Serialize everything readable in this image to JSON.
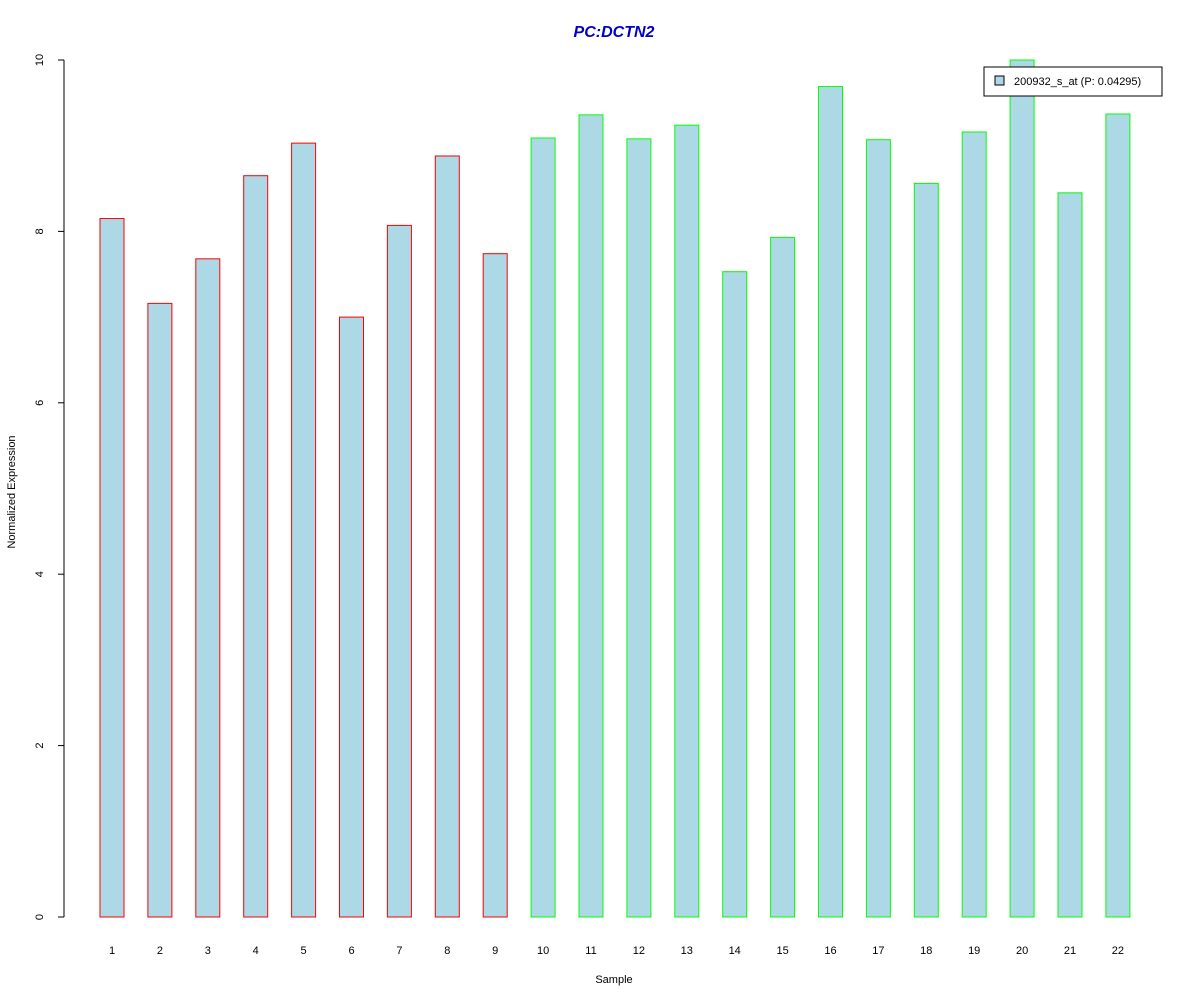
{
  "chart_data": {
    "type": "bar",
    "title": "PC:DCTN2",
    "xlabel": "Sample",
    "ylabel": "Normalized Expression",
    "categories": [
      "1",
      "2",
      "3",
      "4",
      "5",
      "6",
      "7",
      "8",
      "9",
      "10",
      "11",
      "12",
      "13",
      "14",
      "15",
      "16",
      "17",
      "18",
      "19",
      "20",
      "21",
      "22"
    ],
    "series": [
      {
        "name": "200932_s_at (P: 0.04295)",
        "values": [
          8.15,
          7.16,
          7.68,
          8.65,
          9.03,
          7.0,
          8.07,
          8.88,
          7.74,
          9.09,
          9.36,
          9.08,
          9.24,
          7.53,
          7.93,
          9.69,
          9.07,
          8.56,
          9.16,
          10.0,
          8.45,
          9.37
        ]
      }
    ],
    "group_border_colors": [
      "#ff0000",
      "#ff0000",
      "#ff0000",
      "#ff0000",
      "#ff0000",
      "#ff0000",
      "#ff0000",
      "#ff0000",
      "#ff0000",
      "#00ff00",
      "#00ff00",
      "#00ff00",
      "#00ff00",
      "#00ff00",
      "#00ff00",
      "#00ff00",
      "#00ff00",
      "#00ff00",
      "#00ff00",
      "#00ff00",
      "#00ff00",
      "#00ff00"
    ],
    "bar_fill": "#add8e6",
    "title_color": "#0000cc",
    "yticks": [
      "0",
      "2",
      "4",
      "6",
      "8",
      "10"
    ],
    "ylim": [
      0,
      10
    ],
    "grid": false,
    "legend_position": "top-right"
  }
}
